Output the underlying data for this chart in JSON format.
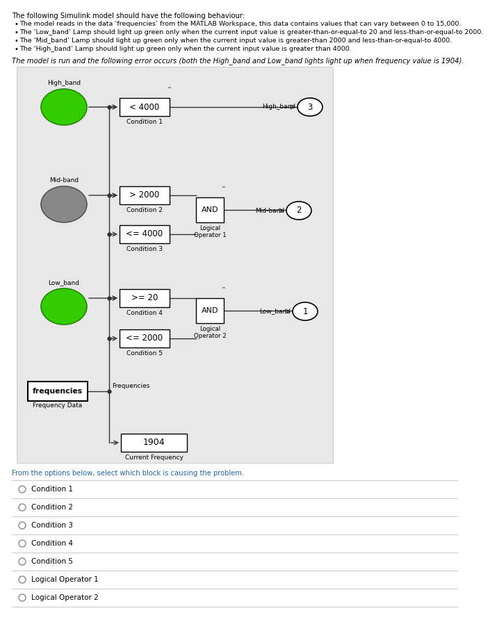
{
  "title_text": "The following Simulink model should have the following behaviour:",
  "bullet1": "The model reads in the data ‘frequencies’ from the MATLAB Workspace, this data contains values that can vary between 0 to 15,000.",
  "bullet2": "The ‘Low_band’ Lamp should light up green only when the current input value is greater-than-or-equal-to 20 and less-than-or-equal-to 2000.",
  "bullet3": "The ‘Mid_band’ Lamp should light up green only when the current input value is greater-than 2000 and less-than-or-equal-to 4000.",
  "bullet4": "The ‘High_band’ Lamp should light up green only when the current input value is greater than 4000.",
  "error_text": "The model is run and the following error occurs (both the High_band and Low_band lights light up when frequency value is 1904).",
  "question_text": "From the options below, select which block is causing the problem.",
  "options": [
    "Condition 1",
    "Condition 2",
    "Condition 3",
    "Condition 4",
    "Condition 5",
    "Logical Operator 1",
    "Logical Operator 2"
  ],
  "diagram_bg": "#e8e8e8",
  "green_color": "#33cc00",
  "gray_color": "#888888",
  "question_color": "#2266aa",
  "option_color": "#2266aa"
}
